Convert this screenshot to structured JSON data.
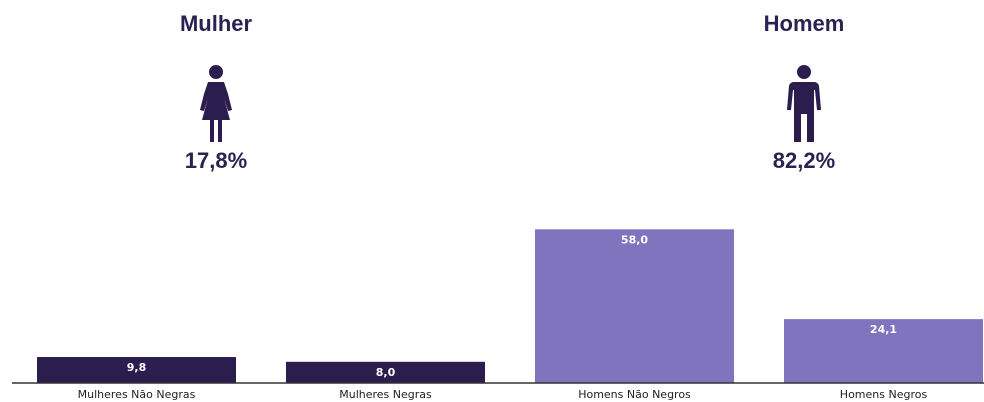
{
  "groups": [
    {
      "title": "Mulher",
      "percent": "17,8%",
      "icon": "woman-icon"
    },
    {
      "title": "Homem",
      "percent": "82,2%",
      "icon": "man-icon"
    }
  ],
  "colors": {
    "dark_bar": "#2b1d4e",
    "light_bar": "#8174bf",
    "heading": "#2a2250",
    "icon": "#2b1d4e",
    "axis": "#333333"
  },
  "chart_data": {
    "type": "bar",
    "categories": [
      "Mulheres Não Negras",
      "Mulheres Negras",
      "Homens Não Negros",
      "Homens Negros"
    ],
    "values": [
      9.8,
      8.0,
      58.0,
      24.1
    ],
    "value_labels": [
      "9,8",
      "8,0",
      "58,0",
      "24,1"
    ],
    "bar_colors": [
      "#2b1d4e",
      "#2b1d4e",
      "#8174bf",
      "#8174bf"
    ],
    "ylim": [
      0,
      60
    ],
    "grid": false,
    "legend": "none"
  }
}
